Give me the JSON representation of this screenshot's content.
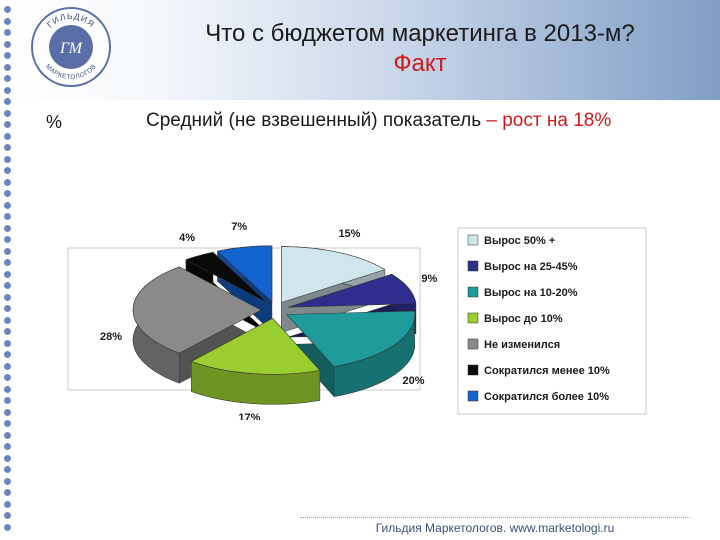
{
  "logo": {
    "top_text": "ГИЛЬДИЯ",
    "bottom_text": "МАРКЕТОЛОГОВ",
    "monogram": "ГМ"
  },
  "slide": {
    "title": "Что с бюджетом маркетинга в 2013-м?",
    "subtitle": "Факт",
    "percent_label": "%",
    "headline_main": "Средний (не взвешенный) показатель ",
    "headline_highlight": "– рост на 18%",
    "footer": "Гильдия Маркетологов. www.marketologi.ru"
  },
  "chart_data": {
    "type": "pie",
    "series": [
      {
        "name": "Вырос 50% +",
        "value": 15,
        "label": "15%",
        "color": "#cfe6ec"
      },
      {
        "name": "Вырос на 25-45%",
        "value": 9,
        "label": "9%",
        "color": "#2e2e8c"
      },
      {
        "name": "Вырос на 10-20%",
        "value": 20,
        "label": "20%",
        "color": "#1f9b9b"
      },
      {
        "name": "Вырос до 10%",
        "value": 17,
        "label": "17%",
        "color": "#9acd2e"
      },
      {
        "name": "Не изменился",
        "value": 28,
        "label": "28%",
        "color": "#8a8a8a"
      },
      {
        "name": "Сократился менее 10%",
        "value": 4,
        "label": "4%",
        "color": "#0a0a0a"
      },
      {
        "name": "Сократился более 10%",
        "value": 7,
        "label": "7%",
        "color": "#1464d0"
      }
    ],
    "legend_position": "right",
    "style": "exploded 3D pie"
  }
}
